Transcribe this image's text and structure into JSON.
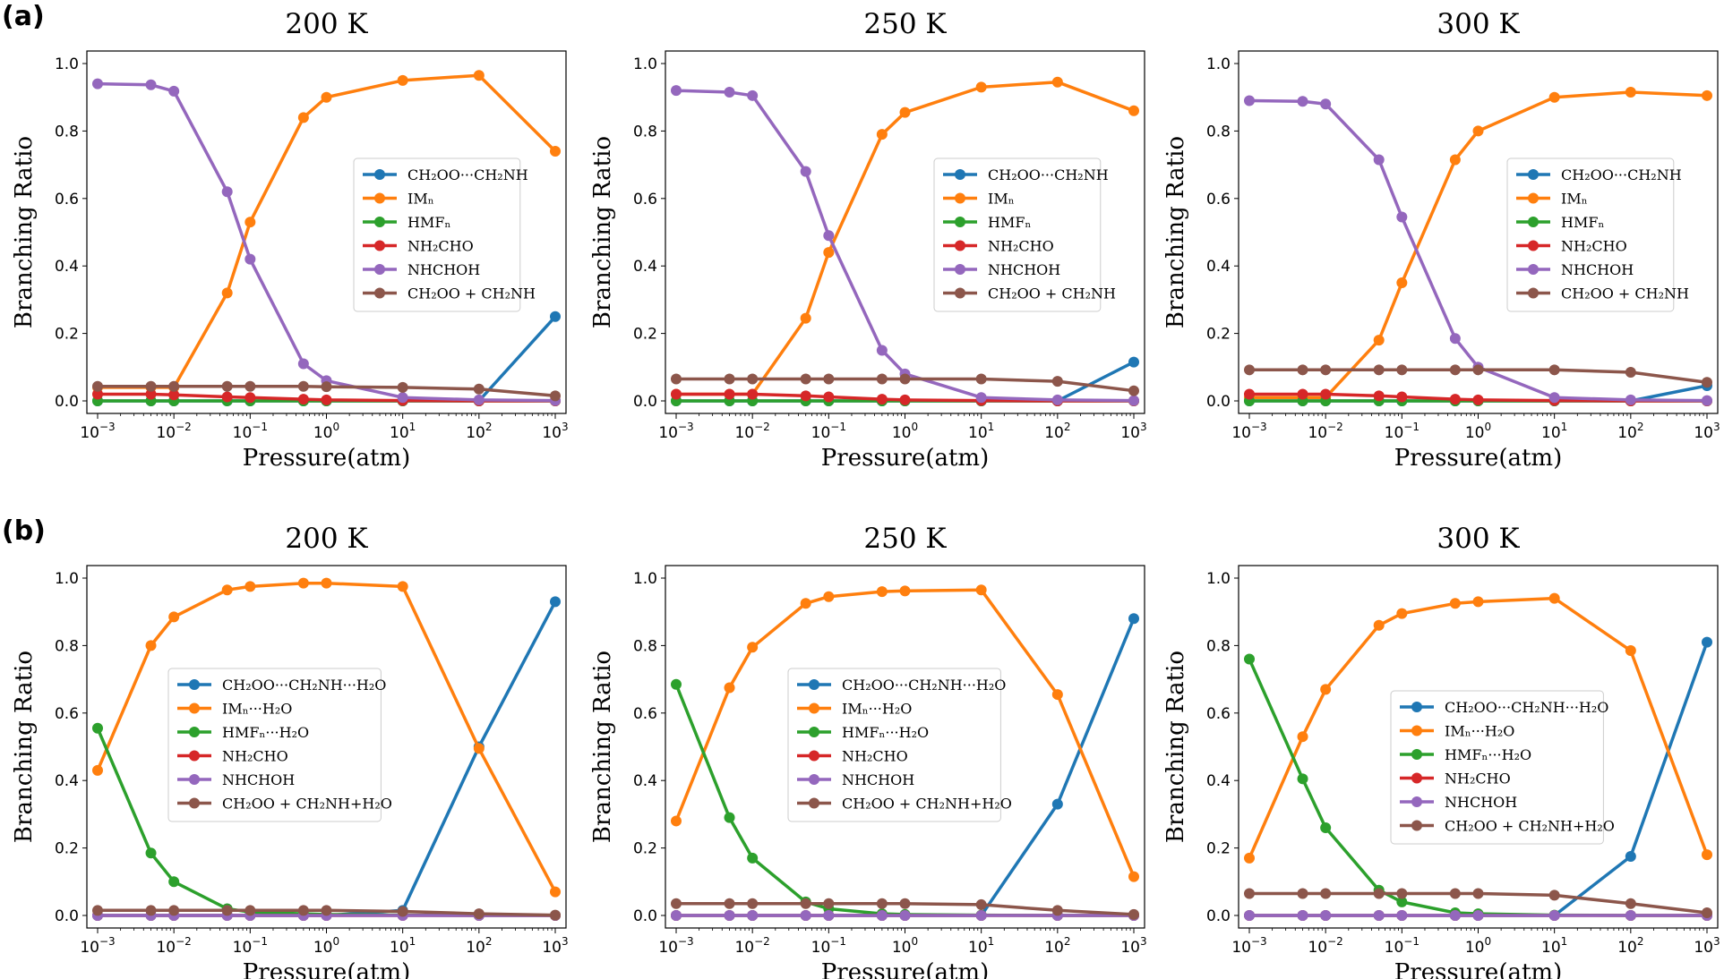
{
  "panel_labels": [
    "(a)",
    "(b)"
  ],
  "colors": {
    "blue": "#1f77b4",
    "orange": "#ff7f0e",
    "green": "#2ca02c",
    "red": "#d62728",
    "purple": "#9467bd",
    "brown": "#8c564b"
  },
  "chart_data": [
    {
      "type": "line",
      "panel": "(a)",
      "title": "200 K",
      "xlabel": "Pressure(atm)",
      "ylabel": "Branching Ratio",
      "xscale": "log",
      "xlim": [
        0.001,
        1000
      ],
      "ylim": [
        0,
        1
      ],
      "x": [
        0.001,
        0.005,
        0.01,
        0.05,
        0.1,
        0.5,
        1,
        10,
        100,
        1000
      ],
      "x_ticks": [
        "10^-3",
        "10^-2",
        "10^-1",
        "10^0",
        "10^1",
        "10^2",
        "10^3"
      ],
      "y_ticks": [
        "0.0",
        "0.2",
        "0.4",
        "0.6",
        "0.8",
        "1.0"
      ],
      "legend_position": "center-right",
      "series": [
        {
          "name": "CH₂OO···CH₂NH",
          "color": "blue",
          "values": [
            0,
            0,
            0,
            0,
            0,
            0,
            0,
            0,
            0,
            0.25
          ]
        },
        {
          "name": "IMₙ",
          "color": "orange",
          "values": [
            0.04,
            0.04,
            0.04,
            0.32,
            0.53,
            0.84,
            0.9,
            0.95,
            0.965,
            0.74
          ]
        },
        {
          "name": "HMFₙ",
          "color": "green",
          "values": [
            0,
            0,
            0,
            0,
            0,
            0,
            0,
            0,
            0,
            0
          ]
        },
        {
          "name": "NH₂CHO",
          "color": "red",
          "values": [
            0.02,
            0.02,
            0.018,
            0.012,
            0.01,
            0.005,
            0.003,
            0.001,
            0,
            0
          ]
        },
        {
          "name": "NHCHOH",
          "color": "purple",
          "values": [
            0.94,
            0.937,
            0.918,
            0.62,
            0.42,
            0.11,
            0.06,
            0.01,
            0.003,
            0.001
          ]
        },
        {
          "name": "CH₂OO + CH₂NH",
          "color": "brown",
          "values": [
            0.043,
            0.043,
            0.043,
            0.043,
            0.043,
            0.043,
            0.042,
            0.04,
            0.035,
            0.015
          ]
        }
      ]
    },
    {
      "type": "line",
      "panel": "(a)",
      "title": "250 K",
      "xlabel": "Pressure(atm)",
      "ylabel": "Branching Ratio",
      "xscale": "log",
      "xlim": [
        0.001,
        1000
      ],
      "ylim": [
        0,
        1
      ],
      "x": [
        0.001,
        0.005,
        0.01,
        0.05,
        0.1,
        0.5,
        1,
        10,
        100,
        1000
      ],
      "x_ticks": [
        "10^-3",
        "10^-2",
        "10^-1",
        "10^0",
        "10^1",
        "10^2",
        "10^3"
      ],
      "y_ticks": [
        "0.0",
        "0.2",
        "0.4",
        "0.6",
        "0.8",
        "1.0"
      ],
      "legend_position": "center-right",
      "series": [
        {
          "name": "CH₂OO···CH₂NH",
          "color": "blue",
          "values": [
            0,
            0,
            0,
            0,
            0,
            0,
            0,
            0,
            0,
            0.115
          ]
        },
        {
          "name": "IMₙ",
          "color": "orange",
          "values": [
            0.02,
            0.02,
            0.02,
            0.245,
            0.44,
            0.79,
            0.855,
            0.93,
            0.945,
            0.86
          ]
        },
        {
          "name": "HMFₙ",
          "color": "green",
          "values": [
            0,
            0,
            0,
            0,
            0,
            0,
            0,
            0,
            0,
            0
          ]
        },
        {
          "name": "NH₂CHO",
          "color": "red",
          "values": [
            0.02,
            0.02,
            0.02,
            0.015,
            0.012,
            0.005,
            0.003,
            0.001,
            0,
            0
          ]
        },
        {
          "name": "NHCHOH",
          "color": "purple",
          "values": [
            0.92,
            0.915,
            0.905,
            0.68,
            0.49,
            0.15,
            0.08,
            0.01,
            0.003,
            0.001
          ]
        },
        {
          "name": "CH₂OO + CH₂NH",
          "color": "brown",
          "values": [
            0.065,
            0.065,
            0.065,
            0.065,
            0.065,
            0.065,
            0.065,
            0.065,
            0.058,
            0.03
          ]
        }
      ]
    },
    {
      "type": "line",
      "panel": "(a)",
      "title": "300 K",
      "xlabel": "Pressure(atm)",
      "ylabel": "Branching Ratio",
      "xscale": "log",
      "xlim": [
        0.001,
        1000
      ],
      "ylim": [
        0,
        1
      ],
      "x": [
        0.001,
        0.005,
        0.01,
        0.05,
        0.1,
        0.5,
        1,
        10,
        100,
        1000
      ],
      "x_ticks": [
        "10^-3",
        "10^-2",
        "10^-1",
        "10^0",
        "10^1",
        "10^2",
        "10^3"
      ],
      "y_ticks": [
        "0.0",
        "0.2",
        "0.4",
        "0.6",
        "0.8",
        "1.0"
      ],
      "legend_position": "center-right",
      "series": [
        {
          "name": "CH₂OO···CH₂NH",
          "color": "blue",
          "values": [
            0,
            0,
            0,
            0,
            0,
            0,
            0,
            0,
            0,
            0.045
          ]
        },
        {
          "name": "IMₙ",
          "color": "orange",
          "values": [
            0.01,
            0.01,
            0.01,
            0.18,
            0.35,
            0.715,
            0.8,
            0.9,
            0.915,
            0.905
          ]
        },
        {
          "name": "HMFₙ",
          "color": "green",
          "values": [
            0,
            0,
            0,
            0,
            0,
            0,
            0,
            0,
            0,
            0
          ]
        },
        {
          "name": "NH₂CHO",
          "color": "red",
          "values": [
            0.02,
            0.02,
            0.02,
            0.015,
            0.012,
            0.005,
            0.003,
            0.001,
            0,
            0
          ]
        },
        {
          "name": "NHCHOH",
          "color": "purple",
          "values": [
            0.89,
            0.888,
            0.88,
            0.715,
            0.545,
            0.185,
            0.1,
            0.01,
            0.003,
            0.001
          ]
        },
        {
          "name": "CH₂OO + CH₂NH",
          "color": "brown",
          "values": [
            0.092,
            0.092,
            0.092,
            0.092,
            0.092,
            0.092,
            0.092,
            0.092,
            0.085,
            0.055
          ]
        }
      ]
    },
    {
      "type": "line",
      "panel": "(b)",
      "title": "200 K",
      "xlabel": "Pressure(atm)",
      "ylabel": "Branching Ratio",
      "xscale": "log",
      "xlim": [
        0.001,
        1000
      ],
      "ylim": [
        0,
        1
      ],
      "x": [
        0.001,
        0.005,
        0.01,
        0.05,
        0.1,
        0.5,
        1,
        10,
        100,
        1000
      ],
      "x_ticks": [
        "10^-3",
        "10^-2",
        "10^-1",
        "10^0",
        "10^1",
        "10^2",
        "10^3"
      ],
      "y_ticks": [
        "0.0",
        "0.2",
        "0.4",
        "0.6",
        "0.8",
        "1.0"
      ],
      "legend_position": "center",
      "series": [
        {
          "name": "CH₂OO···CH₂NH···H₂O",
          "color": "blue",
          "values": [
            0,
            0,
            0,
            0,
            0,
            0,
            0,
            0.015,
            0.5,
            0.93
          ]
        },
        {
          "name": "IMₙ···H₂O",
          "color": "orange",
          "values": [
            0.43,
            0.8,
            0.885,
            0.965,
            0.975,
            0.985,
            0.985,
            0.975,
            0.495,
            0.07
          ]
        },
        {
          "name": "HMFₙ···H₂O",
          "color": "green",
          "values": [
            0.555,
            0.185,
            0.1,
            0.02,
            0.01,
            0.005,
            0.003,
            0.001,
            0,
            0
          ]
        },
        {
          "name": "NH₂CHO",
          "color": "red",
          "values": [
            0,
            0,
            0,
            0,
            0,
            0,
            0,
            0,
            0,
            0
          ]
        },
        {
          "name": "NHCHOH",
          "color": "purple",
          "values": [
            0,
            0,
            0,
            0,
            0,
            0,
            0,
            0,
            0,
            0
          ]
        },
        {
          "name": "CH₂OO + CH₂NH+H₂O",
          "color": "brown",
          "values": [
            0.015,
            0.015,
            0.015,
            0.015,
            0.015,
            0.015,
            0.015,
            0.012,
            0.005,
            0.001
          ]
        }
      ]
    },
    {
      "type": "line",
      "panel": "(b)",
      "title": "250 K",
      "xlabel": "Pressure(atm)",
      "ylabel": "Branching Ratio",
      "xscale": "log",
      "xlim": [
        0.001,
        1000
      ],
      "ylim": [
        0,
        1
      ],
      "x": [
        0.001,
        0.005,
        0.01,
        0.05,
        0.1,
        0.5,
        1,
        10,
        100,
        1000
      ],
      "x_ticks": [
        "10^-3",
        "10^-2",
        "10^-1",
        "10^0",
        "10^1",
        "10^2",
        "10^3"
      ],
      "y_ticks": [
        "0.0",
        "0.2",
        "0.4",
        "0.6",
        "0.8",
        "1.0"
      ],
      "legend_position": "center",
      "series": [
        {
          "name": "CH₂OO···CH₂NH···H₂O",
          "color": "blue",
          "values": [
            0,
            0,
            0,
            0,
            0,
            0,
            0,
            0,
            0.33,
            0.88
          ]
        },
        {
          "name": "IMₙ···H₂O",
          "color": "orange",
          "values": [
            0.28,
            0.675,
            0.795,
            0.925,
            0.945,
            0.96,
            0.962,
            0.965,
            0.655,
            0.115
          ]
        },
        {
          "name": "HMFₙ···H₂O",
          "color": "green",
          "values": [
            0.685,
            0.29,
            0.17,
            0.04,
            0.02,
            0.005,
            0.003,
            0.001,
            0,
            0
          ]
        },
        {
          "name": "NH₂CHO",
          "color": "red",
          "values": [
            0,
            0,
            0,
            0,
            0,
            0,
            0,
            0,
            0,
            0
          ]
        },
        {
          "name": "NHCHOH",
          "color": "purple",
          "values": [
            0,
            0,
            0,
            0,
            0,
            0,
            0,
            0,
            0,
            0
          ]
        },
        {
          "name": "CH₂OO + CH₂NH+H₂O",
          "color": "brown",
          "values": [
            0.035,
            0.035,
            0.035,
            0.035,
            0.035,
            0.035,
            0.035,
            0.032,
            0.015,
            0.003
          ]
        }
      ]
    },
    {
      "type": "line",
      "panel": "(b)",
      "title": "300 K",
      "xlabel": "Pressure(atm)",
      "ylabel": "Branching Ratio",
      "xscale": "log",
      "xlim": [
        0.001,
        1000
      ],
      "ylim": [
        0,
        1
      ],
      "x": [
        0.001,
        0.005,
        0.01,
        0.05,
        0.1,
        0.5,
        1,
        10,
        100,
        1000
      ],
      "x_ticks": [
        "10^-3",
        "10^-2",
        "10^-1",
        "10^0",
        "10^1",
        "10^2",
        "10^3"
      ],
      "y_ticks": [
        "0.0",
        "0.2",
        "0.4",
        "0.6",
        "0.8",
        "1.0"
      ],
      "legend_position": "center-right",
      "series": [
        {
          "name": "CH₂OO···CH₂NH···H₂O",
          "color": "blue",
          "values": [
            0,
            0,
            0,
            0,
            0,
            0,
            0,
            0,
            0.175,
            0.81
          ]
        },
        {
          "name": "IMₙ···H₂O",
          "color": "orange",
          "values": [
            0.17,
            0.53,
            0.67,
            0.86,
            0.895,
            0.925,
            0.93,
            0.94,
            0.785,
            0.18
          ]
        },
        {
          "name": "HMFₙ···H₂O",
          "color": "green",
          "values": [
            0.76,
            0.405,
            0.26,
            0.075,
            0.04,
            0.008,
            0.005,
            0.001,
            0,
            0
          ]
        },
        {
          "name": "NH₂CHO",
          "color": "red",
          "values": [
            0,
            0,
            0,
            0,
            0,
            0,
            0,
            0,
            0,
            0
          ]
        },
        {
          "name": "NHCHOH",
          "color": "purple",
          "values": [
            0,
            0,
            0,
            0,
            0,
            0,
            0,
            0,
            0,
            0
          ]
        },
        {
          "name": "CH₂OO + CH₂NH+H₂O",
          "color": "brown",
          "values": [
            0.065,
            0.065,
            0.065,
            0.065,
            0.065,
            0.065,
            0.065,
            0.06,
            0.035,
            0.008
          ]
        }
      ]
    }
  ]
}
